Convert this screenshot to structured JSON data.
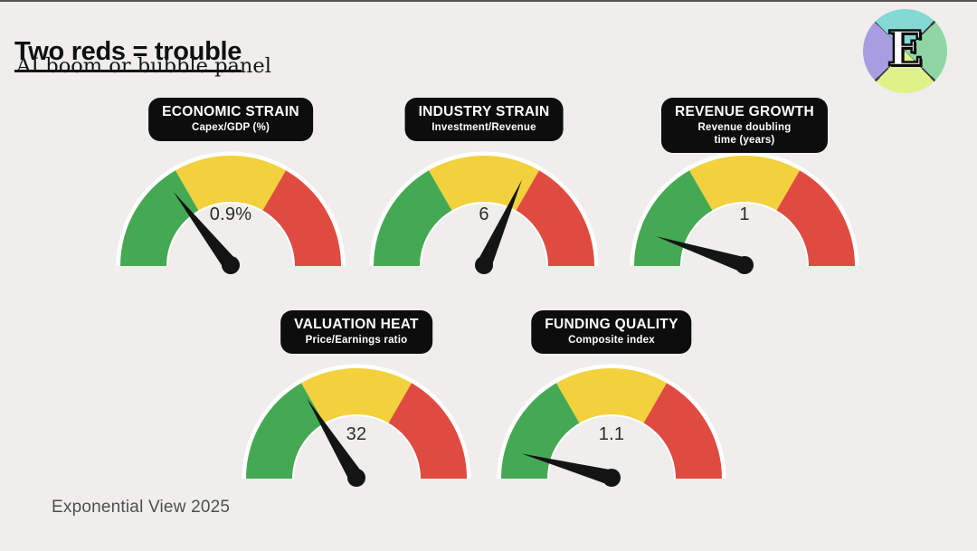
{
  "page": {
    "title": "Two reds = trouble",
    "subtitle": "AI boom or bubble panel",
    "footer": "Exponential View 2025",
    "logo_letter": "E"
  },
  "colors": {
    "background": "#efeeec",
    "green": "#45a953",
    "yellow": "#f2d13d",
    "red": "#e04b41",
    "rim": "#ffffff",
    "label_bg": "#0d0d0d",
    "label_text": "#ffffff",
    "needle": "#141414",
    "value_text": "#2b2b2b",
    "title_text": "#101010",
    "footer_text": "#4f4f4f",
    "logo_teal": "#84d9d4",
    "logo_green": "#8fd6a4",
    "logo_lime": "#dff189",
    "logo_purple": "#a89de1"
  },
  "chart_data": {
    "type": "gauge",
    "title": "Two reds = trouble",
    "subtitle": "AI boom or bubble panel",
    "legend_position": "none",
    "segment_arc": [
      {
        "color_key": "green",
        "start_deg": 180,
        "end_deg": 120
      },
      {
        "color_key": "yellow",
        "start_deg": 120,
        "end_deg": 60
      },
      {
        "color_key": "red",
        "start_deg": 60,
        "end_deg": 0
      }
    ],
    "gauges": [
      {
        "title": "ECONOMIC STRAIN",
        "subtitle": "Capex/GDP (%)",
        "value": "0.9%",
        "needle_angle_deg": 128
      },
      {
        "title": "INDUSTRY STRAIN",
        "subtitle": "Investment/Revenue",
        "value": "6",
        "needle_angle_deg": 66
      },
      {
        "title": "REVENUE GROWTH",
        "subtitle": "Revenue doubling time (years)",
        "value": "1",
        "needle_angle_deg": 162
      },
      {
        "title": "VALUATION HEAT",
        "subtitle": "Price/Earnings ratio",
        "value": "32",
        "needle_angle_deg": 122
      },
      {
        "title": "FUNDING QUALITY",
        "subtitle": "Composite index",
        "value": "1.1",
        "needle_angle_deg": 165
      }
    ]
  }
}
